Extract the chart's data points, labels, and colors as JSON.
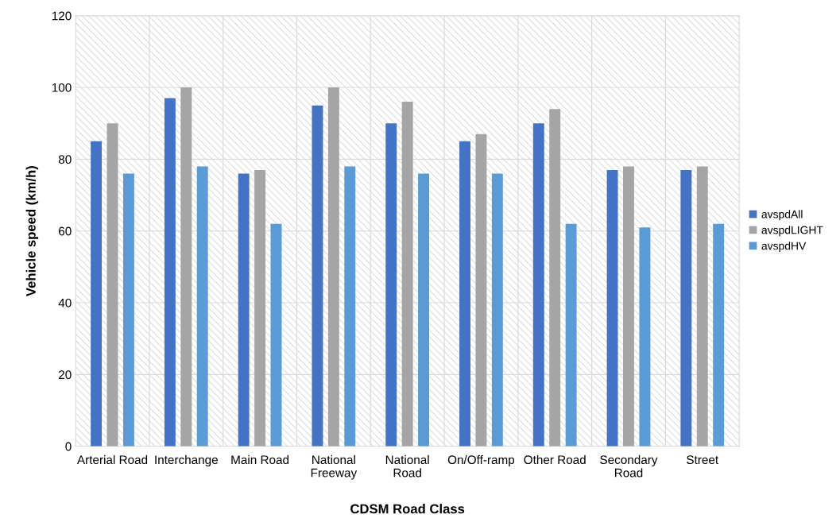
{
  "chart_data": {
    "type": "bar",
    "xlabel": "CDSM Road Class",
    "ylabel": "Vehicle speed (km/h)",
    "categories": [
      "Arterial Road",
      "Interchange",
      "Main Road",
      "National\nFreeway",
      "National\nRoad",
      "On/Off-ramp",
      "Other Road",
      "Secondary\nRoad",
      "Street"
    ],
    "series": [
      {
        "name": "avspdAll",
        "color": "#4472c4",
        "values": [
          85,
          97,
          76,
          95,
          90,
          85,
          90,
          77,
          77
        ]
      },
      {
        "name": "avspdLIGHT",
        "color": "#a5a5a5",
        "values": [
          90,
          100,
          77,
          100,
          96,
          87,
          94,
          78,
          78
        ]
      },
      {
        "name": "avspdHV",
        "color": "#5b9bd5",
        "values": [
          76,
          78,
          62,
          78,
          76,
          76,
          62,
          61,
          62
        ]
      }
    ],
    "ylim": [
      0,
      120
    ],
    "yticks": [
      0,
      20,
      40,
      60,
      80,
      100,
      120
    ],
    "grid": true,
    "legend": "right"
  }
}
